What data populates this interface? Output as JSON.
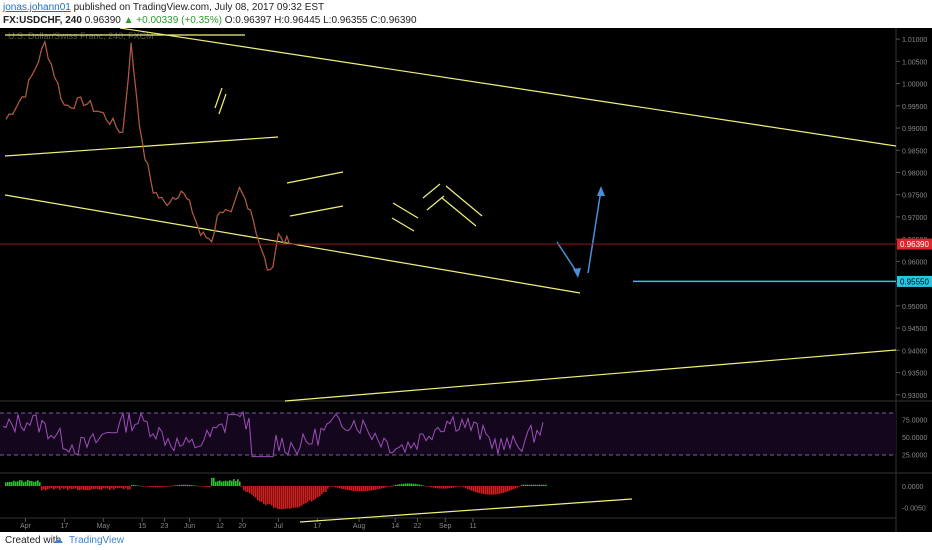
{
  "header": {
    "user": "jonas.johann01",
    "published": "published on TradingView.com, July 08, 2017 09:32 EST",
    "symbol": "FX:USDCHF, 240",
    "last": "0.96390",
    "change": "▲ +0.00339 (+0.35%)",
    "ohlc": "O:0.96397 H:0.96445 L:0.96355 C:0.96390"
  },
  "footer": {
    "created_with": "Created with",
    "brand": "TradingView"
  },
  "chart_data": [
    {
      "type": "line",
      "panel": "price",
      "title": "U.S. Dollar/Swiss Franc, 240, FXCM",
      "y_ticks": [
        "1.01000",
        "1.00500",
        "1.00000",
        "0.99500",
        "0.99000",
        "0.98500",
        "0.98000",
        "0.97500",
        "0.97000",
        "0.96500",
        "0.96000",
        "0.95500",
        "0.95000",
        "0.94500",
        "0.94000",
        "0.93500",
        "0.93000"
      ],
      "ylim": [
        0.9286,
        1.0125
      ],
      "last_price": "0.96390",
      "horizontal_level": "0.95550",
      "x_ticks": [
        "Apr",
        "17",
        "May",
        "15",
        "23",
        "Jun",
        "12",
        "20",
        "Jul",
        "17",
        "Aug",
        "14",
        "22",
        "Sep",
        "11"
      ],
      "series": [
        {
          "x": [
            "2017-03-27",
            "2017-04-03",
            "2017-04-10",
            "2017-04-17",
            "2017-04-24",
            "2017-05-01",
            "2017-05-08",
            "2017-05-11",
            "2017-05-15",
            "2017-05-19",
            "2017-05-23",
            "2017-05-29",
            "2017-06-02",
            "2017-06-05",
            "2017-06-09",
            "2017-06-12",
            "2017-06-16",
            "2017-06-19",
            "2017-06-23",
            "2017-06-27",
            "2017-06-30",
            "2017-07-03",
            "2017-07-07"
          ],
          "y": [
            0.992,
            0.998,
            1.009,
            0.995,
            0.996,
            0.993,
            0.989,
            1.0085,
            0.986,
            0.976,
            0.973,
            0.976,
            0.9715,
            0.966,
            0.965,
            0.972,
            0.97,
            0.976,
            0.972,
            0.962,
            0.957,
            0.966,
            0.9639
          ]
        }
      ],
      "annotations": [
        "trend channel lines",
        "flag patterns",
        "projected path arrows"
      ]
    },
    {
      "type": "line",
      "panel": "oscillator",
      "y_ticks": [
        "75.0000",
        "50.0000",
        "25.0000"
      ],
      "ylim": [
        0,
        100
      ],
      "levels": [
        80,
        20
      ]
    },
    {
      "type": "bar",
      "panel": "histogram",
      "y_ticks": [
        "0.0000",
        "-0.0050"
      ],
      "ylim": [
        -0.0072,
        0.0028
      ]
    }
  ],
  "colors": {
    "up": "#26a69a",
    "down": "#ef5350",
    "trendline": "#f2f07a",
    "projection": "#4b8fd8",
    "level": "#27c6e8",
    "last": "#e0252d",
    "osc": "#9c4fb8"
  }
}
